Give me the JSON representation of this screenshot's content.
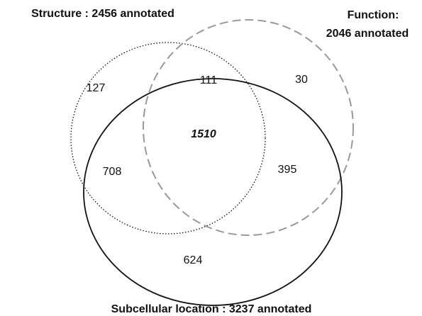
{
  "sets": [
    {
      "label": [
        "Structure : 2456 annotated"
      ]
    },
    {
      "label": [
        "Function:",
        "2046 annotated"
      ]
    },
    {
      "label": [
        "Subcellular location : 3237 annotated"
      ]
    }
  ],
  "regions": {
    "structure_only": "127",
    "structure_function": "111",
    "function_only": "30",
    "all_three": "1510",
    "structure_location": "708",
    "function_location": "395",
    "location_only": "624"
  }
}
